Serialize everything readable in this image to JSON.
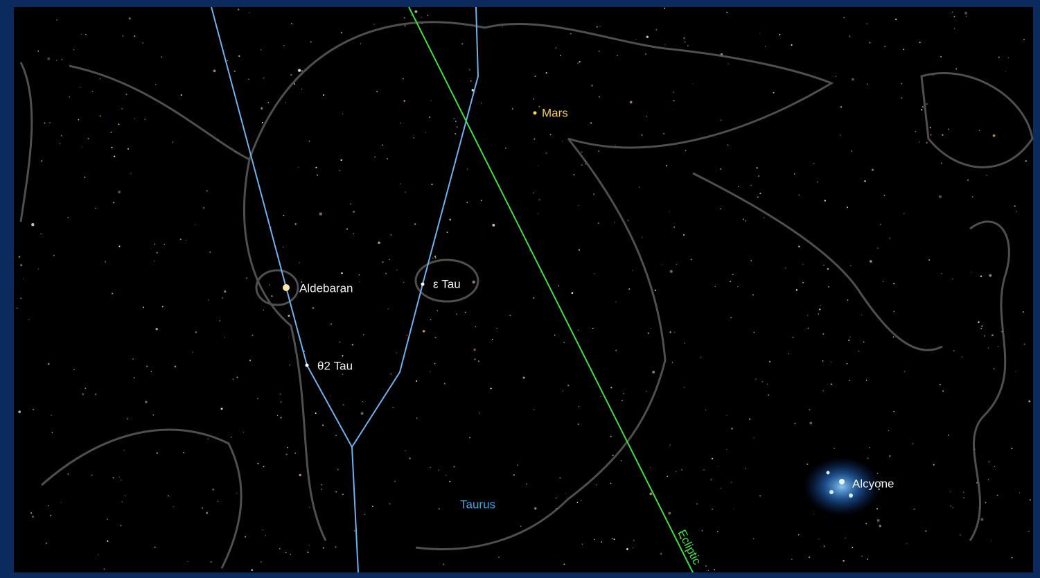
{
  "objects": [
    {
      "label": "Mars"
    },
    {
      "label": "Aldebaran"
    },
    {
      "label": "ε Tau"
    },
    {
      "label": "θ2 Tau"
    },
    {
      "label": "Alcyone"
    }
  ],
  "constellation": "Taurus",
  "ecliptic": "Ecliptic"
}
